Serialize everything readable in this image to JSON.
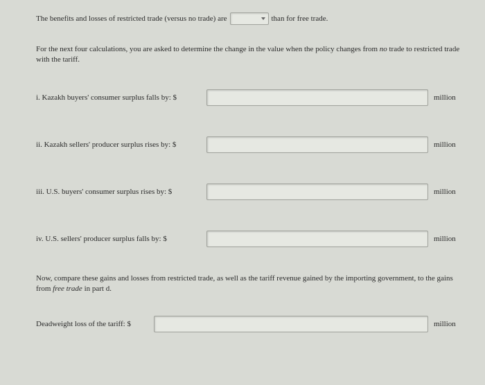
{
  "intro": {
    "before": "The benefits and losses of restricted trade (versus no trade) are",
    "after": "than for free trade."
  },
  "instruction": {
    "line1": "For the next four calculations, you are asked to determine the change in the value when the policy changes from ",
    "em1": "no",
    "line2": " trade to restricted trade with the tariff."
  },
  "questions": {
    "q1": {
      "label": "i. Kazakh buyers' consumer surplus falls by: $",
      "unit": "million",
      "value": ""
    },
    "q2": {
      "label": "ii. Kazakh sellers' producer surplus rises by: $",
      "unit": "million",
      "value": ""
    },
    "q3": {
      "label": "iii. U.S. buyers' consumer surplus rises by: $",
      "unit": "million",
      "value": ""
    },
    "q4": {
      "label": "iv. U.S. sellers' producer surplus falls by: $",
      "unit": "million",
      "value": ""
    }
  },
  "compare": {
    "part1": "Now, compare these gains and losses from restricted trade, as well as the tariff revenue gained by the importing government, to the gains from ",
    "em": "free trade",
    "part2": " in part d."
  },
  "final": {
    "label": "Deadweight loss of the tariff: $",
    "unit": "million",
    "value": ""
  },
  "styling": {
    "background": "#d8dad4",
    "input_bg": "#e6e8e2",
    "input_border": "#a0a29c",
    "text_color": "#2a2a2a",
    "font_size": 11
  }
}
